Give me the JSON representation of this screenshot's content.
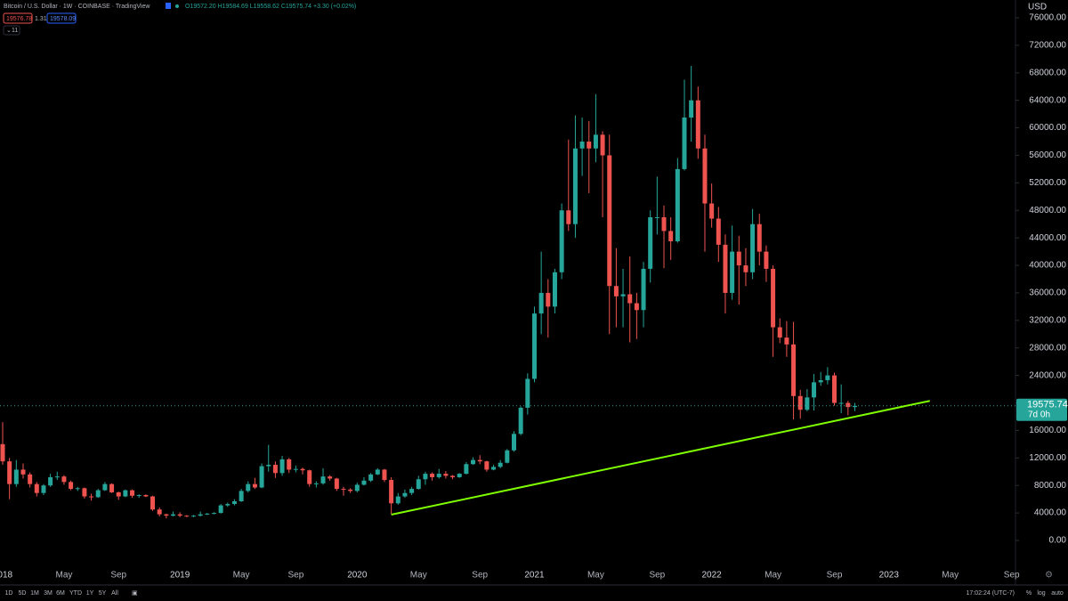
{
  "chart_data": {
    "type": "candlestick",
    "title": "Bitcoin / U.S. Dollar · 1W · COINBASE · TradingView",
    "ohlc_legend": "O19572.20 H19584.69 L19558.62 C19575.74 +3.30 (+0.02%)",
    "sell_price": "19576.78",
    "spread": "1.31",
    "buy_price": "19578.09",
    "indicator_count": "11",
    "currency": "USD",
    "last_price": 19575.74,
    "countdown": "7d 0h",
    "up_color": "#26a69a",
    "down_color": "#ef5350",
    "grid": false,
    "log_scale": false,
    "categories": [
      "2018",
      null,
      null,
      null,
      null,
      null,
      null,
      null,
      null,
      "May",
      null,
      null,
      null,
      null,
      null,
      null,
      null,
      "Sep",
      null,
      null,
      null,
      null,
      null,
      null,
      null,
      null,
      "2019",
      null,
      null,
      null,
      null,
      null,
      null,
      null,
      null,
      "May",
      null,
      null,
      null,
      null,
      null,
      null,
      null,
      "Sep",
      null,
      null,
      null,
      null,
      null,
      null,
      null,
      null,
      "2020",
      null,
      null,
      null,
      null,
      null,
      null,
      null,
      null,
      "May",
      null,
      null,
      null,
      null,
      null,
      null,
      null,
      null,
      "Sep",
      null,
      null,
      null,
      null,
      null,
      null,
      null,
      "2021",
      null,
      null,
      null,
      null,
      null,
      null,
      null,
      null,
      "May",
      null,
      null,
      null,
      null,
      null,
      null,
      null,
      null,
      "Sep",
      null,
      null,
      null,
      null,
      null,
      null,
      null,
      "2022",
      null,
      null,
      null,
      null,
      null,
      null,
      null,
      null,
      "May",
      null,
      null,
      null,
      null,
      null,
      null,
      null,
      null,
      "Sep",
      null,
      null,
      null,
      null,
      null,
      null,
      null,
      "2023",
      null,
      null,
      null,
      null,
      null,
      null,
      null,
      null,
      "May",
      null,
      null,
      null,
      null,
      null,
      null,
      null,
      null,
      "Sep",
      null,
      null
    ],
    "open": [
      14000,
      11500,
      8200,
      10300,
      9600,
      8200,
      6900,
      8000,
      9200,
      9300,
      8500,
      7500,
      7600,
      6400,
      6300,
      7300,
      8200,
      7000,
      6400,
      7300,
      6500,
      6600,
      6400,
      4500,
      3800,
      3600,
      3800,
      3600,
      3500,
      3600,
      3800,
      3900,
      4000,
      5100,
      5300,
      5700,
      7200,
      8200,
      7700,
      10800,
      11000,
      9800,
      11800,
      10300,
      10400,
      10200,
      8200,
      8300,
      9300,
      9000,
      7500,
      7400,
      7200,
      8100,
      8700,
      9600,
      10300,
      8800,
      5400,
      6400,
      6900,
      7500,
      8900,
      9700,
      9200,
      9700,
      9400,
      9200,
      9700,
      11100,
      11700,
      11500,
      10300,
      10700,
      11300,
      13100,
      15500,
      19300,
      23500,
      33000,
      36000,
      34000,
      39000,
      48000,
      46000,
      57000,
      58000,
      57000,
      59000,
      56000,
      37000,
      35500,
      35800,
      34500,
      33500,
      39500,
      47000,
      47000,
      45000,
      43500,
      54000,
      61500,
      64000,
      57000,
      49000,
      46800,
      43000,
      36000,
      42000,
      40000,
      39000,
      46000,
      42000,
      39500,
      31000,
      29500,
      28500,
      21000,
      19000,
      20800,
      23000,
      23300,
      24000,
      20000,
      20000,
      19400,
      null,
      null,
      null,
      null,
      null,
      null,
      null,
      null,
      null,
      null,
      null,
      null,
      null,
      null,
      null,
      null,
      null,
      null,
      null,
      null,
      null,
      null,
      null,
      null,
      null
    ],
    "high": [
      17200,
      12000,
      11700,
      11200,
      9900,
      8500,
      8200,
      9700,
      10000,
      9500,
      8700,
      7800,
      7700,
      6800,
      7500,
      8500,
      8300,
      7100,
      7400,
      7400,
      6700,
      6700,
      6500,
      4800,
      3900,
      4200,
      4100,
      3700,
      3700,
      4200,
      4000,
      4100,
      5300,
      5500,
      6000,
      7500,
      8600,
      9100,
      11200,
      13900,
      11500,
      12300,
      12000,
      10900,
      10600,
      10300,
      8600,
      10500,
      9500,
      9100,
      7800,
      7600,
      8400,
      9200,
      9800,
      10500,
      10400,
      9200,
      6900,
      7400,
      7800,
      9400,
      10000,
      9900,
      10400,
      10100,
      9500,
      9800,
      11400,
      12100,
      12400,
      11600,
      11000,
      11700,
      13300,
      15900,
      19500,
      24300,
      34000,
      42000,
      38000,
      39500,
      49000,
      58300,
      61800,
      61500,
      61000,
      64900,
      59500,
      59000,
      42500,
      39500,
      41300,
      36000,
      40500,
      48000,
      52900,
      48700,
      47000,
      55600,
      67000,
      69000,
      66000,
      59000,
      51900,
      48500,
      44500,
      45800,
      44300,
      42500,
      48200,
      47500,
      42900,
      40000,
      32300,
      31900,
      31800,
      21900,
      22000,
      24200,
      24500,
      25200,
      24400,
      22700,
      20300,
      20000,
      null,
      null,
      null,
      null,
      null,
      null,
      null,
      null,
      null,
      null,
      null,
      null,
      null,
      null,
      null,
      null,
      null,
      null,
      null,
      null,
      null,
      null,
      null,
      null,
      null
    ],
    "low": [
      11000,
      6000,
      7800,
      9000,
      7700,
      6400,
      6600,
      7800,
      8800,
      8100,
      7300,
      7200,
      6100,
      5800,
      6200,
      7200,
      6900,
      5900,
      6300,
      6200,
      6200,
      6300,
      4300,
      3500,
      3200,
      3500,
      3400,
      3400,
      3400,
      3500,
      3700,
      3800,
      3900,
      4900,
      5100,
      5600,
      7000,
      7500,
      7600,
      10000,
      9100,
      9400,
      9800,
      9900,
      9600,
      7800,
      7700,
      8100,
      8700,
      7200,
      6500,
      6900,
      7000,
      8000,
      8500,
      9500,
      8500,
      3850,
      5200,
      6200,
      6600,
      7400,
      8100,
      8700,
      9000,
      9000,
      8900,
      9100,
      9600,
      11000,
      11100,
      10000,
      10200,
      10500,
      11200,
      12900,
      15300,
      18300,
      23000,
      30000,
      29500,
      33000,
      38000,
      45000,
      44000,
      53000,
      50500,
      55000,
      47000,
      30000,
      31000,
      31000,
      28800,
      29300,
      31000,
      37500,
      44500,
      39600,
      40800,
      43300,
      53800,
      58000,
      55500,
      42000,
      45500,
      40500,
      33000,
      35000,
      34300,
      37000,
      38000,
      40000,
      37600,
      26700,
      28700,
      26700,
      17600,
      17700,
      18800,
      18900,
      22500,
      22700,
      19600,
      18500,
      18200,
      18800,
      null,
      null,
      null,
      null,
      null,
      null,
      null,
      null,
      null,
      null,
      null,
      null,
      null,
      null,
      null,
      null,
      null,
      null,
      null,
      null,
      null,
      null,
      null,
      null,
      null
    ],
    "close": [
      11500,
      8200,
      10300,
      9600,
      8200,
      6900,
      8000,
      9200,
      9300,
      8500,
      7500,
      7600,
      6400,
      6300,
      7300,
      8200,
      7000,
      6400,
      7300,
      6500,
      6600,
      6400,
      4500,
      3800,
      3600,
      3800,
      3600,
      3500,
      3600,
      3800,
      3900,
      4000,
      5100,
      5300,
      5700,
      7200,
      8200,
      7700,
      10800,
      11000,
      9800,
      11800,
      10300,
      10400,
      10200,
      8200,
      8300,
      9300,
      9000,
      7500,
      7400,
      7200,
      8100,
      8700,
      9600,
      10300,
      8800,
      5400,
      6400,
      6900,
      7500,
      8900,
      9700,
      9200,
      9700,
      9400,
      9200,
      9700,
      11100,
      11700,
      11500,
      10300,
      10700,
      11300,
      13100,
      15500,
      19300,
      23500,
      33000,
      36000,
      34000,
      39000,
      48000,
      46000,
      57000,
      58000,
      57000,
      59000,
      56000,
      37000,
      35500,
      35800,
      34500,
      33500,
      39500,
      47000,
      47000,
      45000,
      43500,
      54000,
      61500,
      64000,
      57000,
      49000,
      46800,
      43000,
      36000,
      42000,
      40000,
      39000,
      46000,
      42000,
      39500,
      31000,
      29500,
      28500,
      21000,
      19000,
      20800,
      23000,
      23300,
      24000,
      20000,
      20000,
      19400,
      19575.74,
      null,
      null,
      null,
      null,
      null,
      null,
      null,
      null,
      null,
      null,
      null,
      null,
      null,
      null,
      null,
      null,
      null,
      null,
      null,
      null,
      null,
      null,
      null,
      null,
      null
    ],
    "trendline": {
      "color": "#7fff00",
      "x": [
        57,
        136
      ],
      "values": [
        3750,
        20300
      ]
    },
    "ylim": [
      0,
      76000
    ],
    "yticks": [
      {
        "value": 0,
        "label": "0.00"
      },
      {
        "value": 4000,
        "label": "4000.00"
      },
      {
        "value": 8000,
        "label": "8000.00"
      },
      {
        "value": 12000,
        "label": "12000.00"
      },
      {
        "value": 16000,
        "label": "16000.00"
      },
      {
        "value": 20000,
        "label": "20000.00"
      },
      {
        "value": 24000,
        "label": "24000.00"
      },
      {
        "value": 28000,
        "label": "28000.00"
      },
      {
        "value": 32000,
        "label": "32000.00"
      },
      {
        "value": 36000,
        "label": "36000.00"
      },
      {
        "value": 40000,
        "label": "40000.00"
      },
      {
        "value": 44000,
        "label": "44000.00"
      },
      {
        "value": 48000,
        "label": "48000.00"
      },
      {
        "value": 52000,
        "label": "52000.00"
      },
      {
        "value": 56000,
        "label": "56000.00"
      },
      {
        "value": 60000,
        "label": "60000.00"
      },
      {
        "value": 64000,
        "label": "64000.00"
      },
      {
        "value": 68000,
        "label": "68000.00"
      },
      {
        "value": 72000,
        "label": "72000.00"
      },
      {
        "value": 76000,
        "label": "76000.00"
      }
    ],
    "ranges": [
      "1D",
      "5D",
      "1M",
      "3M",
      "6M",
      "YTD",
      "1Y",
      "5Y",
      "All"
    ],
    "clock": "17:02:24 (UTC-7)",
    "scale_options": [
      "%",
      "log",
      "auto"
    ]
  }
}
